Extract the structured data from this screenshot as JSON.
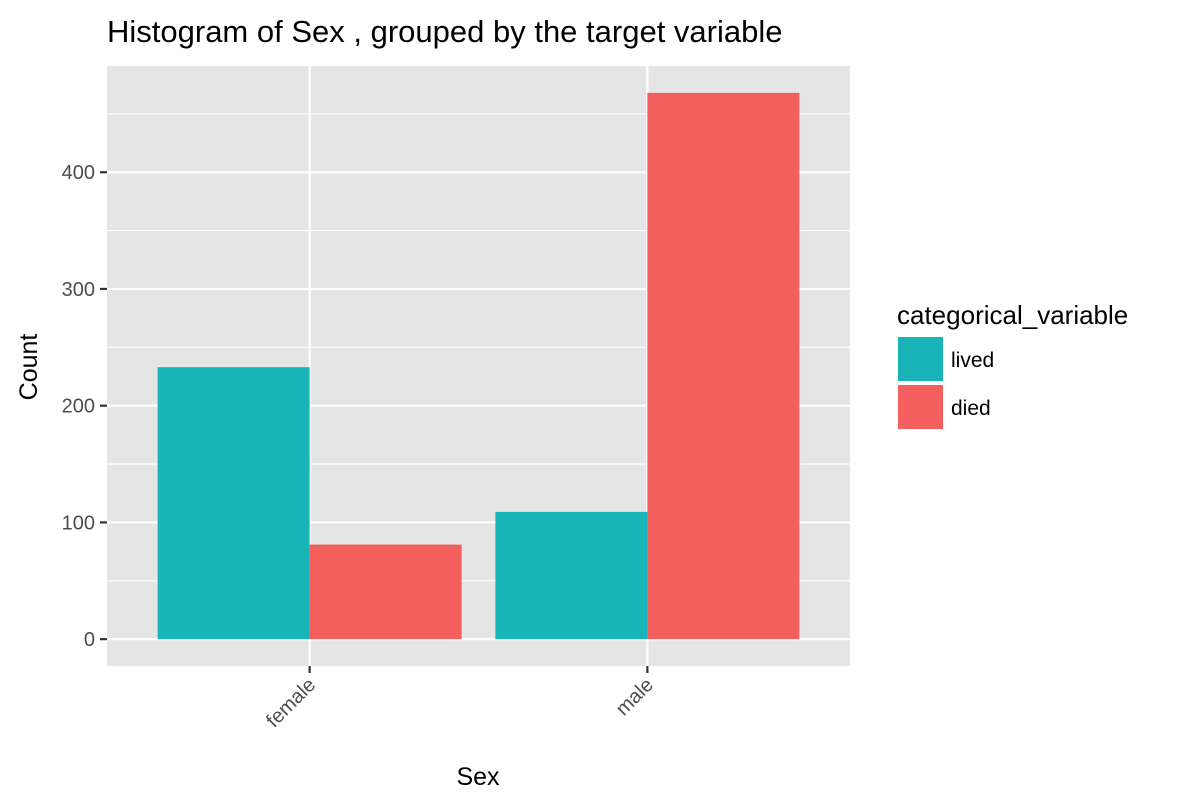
{
  "chart_data": {
    "type": "bar",
    "title": "Histogram of Sex , grouped by the target variable",
    "xlabel": "Sex",
    "ylabel": "Count",
    "categories": [
      "female",
      "male"
    ],
    "series": [
      {
        "name": "lived",
        "color": "#19b4b8",
        "values": [
          233,
          109
        ]
      },
      {
        "name": "died",
        "color": "#f25f5c",
        "values": [
          81,
          468
        ]
      }
    ],
    "ylim": [
      -23,
      491
    ],
    "yticks": [
      0,
      100,
      200,
      300,
      400
    ],
    "ytick_labels": [
      "0",
      "100",
      "200",
      "300",
      "400"
    ],
    "legend": {
      "title": "categorical_variable",
      "placement": "right"
    },
    "grid": true,
    "panel_background": "#e5e5e5",
    "x_tick_label_rotation": -45
  }
}
